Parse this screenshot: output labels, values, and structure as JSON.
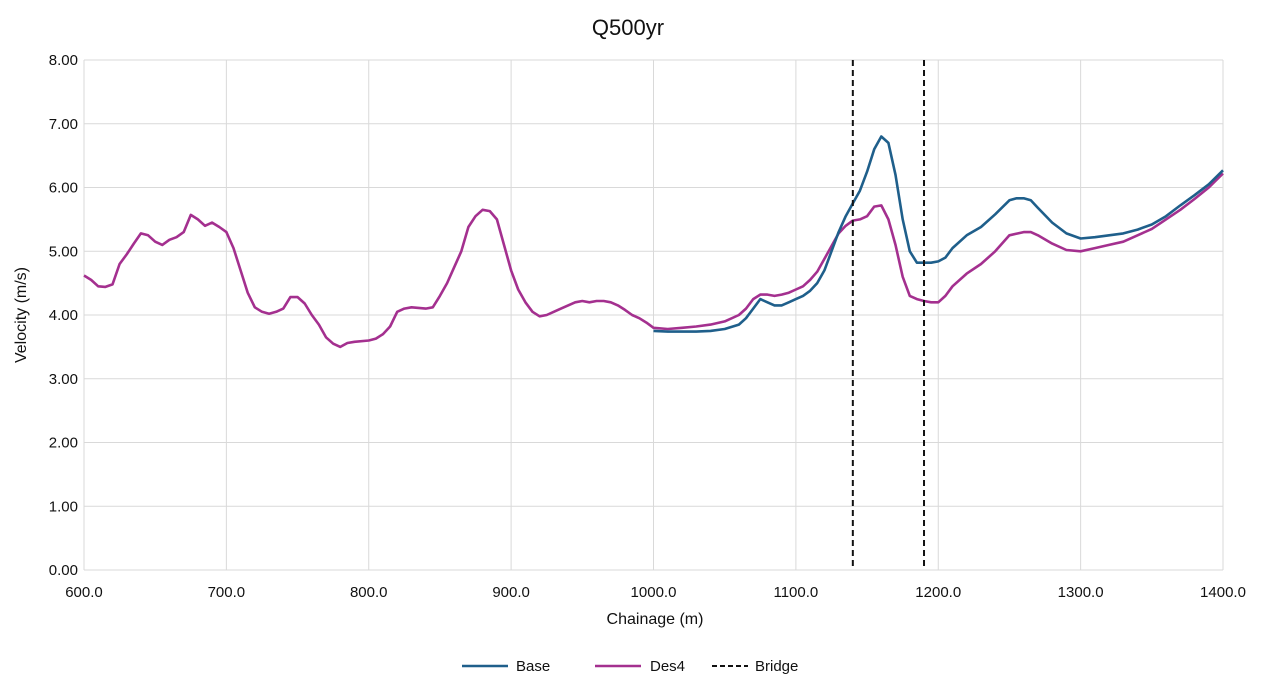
{
  "chart_data": {
    "type": "line",
    "title": "Q500yr",
    "xlabel": "Chainage (m)",
    "ylabel": "Velocity (m/s)",
    "xlim": [
      600,
      1400
    ],
    "ylim": [
      0,
      8
    ],
    "x_ticks": [
      "600.0",
      "700.0",
      "800.0",
      "900.0",
      "1000.0",
      "1100.0",
      "1200.0",
      "1300.0",
      "1400.0"
    ],
    "y_ticks": [
      "0.00",
      "1.00",
      "2.00",
      "3.00",
      "4.00",
      "5.00",
      "6.00",
      "7.00",
      "8.00"
    ],
    "grid": true,
    "legend_position": "bottom",
    "series": [
      {
        "name": "Base",
        "color": "#1f5f8b",
        "points": [
          [
            1000,
            3.75
          ],
          [
            1010,
            3.74
          ],
          [
            1020,
            3.74
          ],
          [
            1030,
            3.74
          ],
          [
            1040,
            3.75
          ],
          [
            1050,
            3.78
          ],
          [
            1060,
            3.85
          ],
          [
            1065,
            3.95
          ],
          [
            1070,
            4.1
          ],
          [
            1075,
            4.25
          ],
          [
            1080,
            4.2
          ],
          [
            1085,
            4.15
          ],
          [
            1090,
            4.15
          ],
          [
            1095,
            4.2
          ],
          [
            1100,
            4.25
          ],
          [
            1105,
            4.3
          ],
          [
            1110,
            4.38
          ],
          [
            1115,
            4.5
          ],
          [
            1120,
            4.7
          ],
          [
            1125,
            5.0
          ],
          [
            1130,
            5.3
          ],
          [
            1135,
            5.55
          ],
          [
            1140,
            5.75
          ],
          [
            1145,
            5.95
          ],
          [
            1150,
            6.25
          ],
          [
            1155,
            6.6
          ],
          [
            1160,
            6.8
          ],
          [
            1165,
            6.7
          ],
          [
            1170,
            6.2
          ],
          [
            1175,
            5.5
          ],
          [
            1180,
            5.0
          ],
          [
            1185,
            4.82
          ],
          [
            1190,
            4.82
          ],
          [
            1195,
            4.82
          ],
          [
            1200,
            4.84
          ],
          [
            1205,
            4.9
          ],
          [
            1210,
            5.05
          ],
          [
            1220,
            5.25
          ],
          [
            1230,
            5.38
          ],
          [
            1240,
            5.58
          ],
          [
            1250,
            5.8
          ],
          [
            1255,
            5.83
          ],
          [
            1260,
            5.83
          ],
          [
            1265,
            5.8
          ],
          [
            1270,
            5.68
          ],
          [
            1280,
            5.45
          ],
          [
            1290,
            5.28
          ],
          [
            1300,
            5.2
          ],
          [
            1310,
            5.22
          ],
          [
            1320,
            5.25
          ],
          [
            1330,
            5.28
          ],
          [
            1340,
            5.34
          ],
          [
            1350,
            5.42
          ],
          [
            1360,
            5.55
          ],
          [
            1370,
            5.72
          ],
          [
            1380,
            5.88
          ],
          [
            1390,
            6.05
          ],
          [
            1400,
            6.27
          ]
        ]
      },
      {
        "name": "Des4",
        "color": "#a4308f",
        "points": [
          [
            600,
            4.62
          ],
          [
            605,
            4.55
          ],
          [
            610,
            4.45
          ],
          [
            615,
            4.44
          ],
          [
            620,
            4.48
          ],
          [
            625,
            4.8
          ],
          [
            630,
            4.95
          ],
          [
            635,
            5.12
          ],
          [
            640,
            5.28
          ],
          [
            645,
            5.25
          ],
          [
            650,
            5.15
          ],
          [
            655,
            5.1
          ],
          [
            660,
            5.18
          ],
          [
            665,
            5.22
          ],
          [
            670,
            5.3
          ],
          [
            675,
            5.57
          ],
          [
            680,
            5.5
          ],
          [
            685,
            5.4
          ],
          [
            690,
            5.45
          ],
          [
            695,
            5.38
          ],
          [
            700,
            5.3
          ],
          [
            705,
            5.05
          ],
          [
            710,
            4.7
          ],
          [
            715,
            4.35
          ],
          [
            720,
            4.12
          ],
          [
            725,
            4.05
          ],
          [
            730,
            4.02
          ],
          [
            735,
            4.05
          ],
          [
            740,
            4.1
          ],
          [
            745,
            4.28
          ],
          [
            750,
            4.28
          ],
          [
            755,
            4.18
          ],
          [
            760,
            4.0
          ],
          [
            765,
            3.85
          ],
          [
            770,
            3.65
          ],
          [
            775,
            3.55
          ],
          [
            780,
            3.5
          ],
          [
            785,
            3.56
          ],
          [
            790,
            3.58
          ],
          [
            800,
            3.6
          ],
          [
            805,
            3.63
          ],
          [
            810,
            3.7
          ],
          [
            815,
            3.82
          ],
          [
            820,
            4.05
          ],
          [
            825,
            4.1
          ],
          [
            830,
            4.12
          ],
          [
            840,
            4.1
          ],
          [
            845,
            4.12
          ],
          [
            850,
            4.3
          ],
          [
            855,
            4.5
          ],
          [
            860,
            4.75
          ],
          [
            865,
            5.0
          ],
          [
            870,
            5.38
          ],
          [
            875,
            5.55
          ],
          [
            880,
            5.65
          ],
          [
            885,
            5.63
          ],
          [
            890,
            5.5
          ],
          [
            895,
            5.1
          ],
          [
            900,
            4.7
          ],
          [
            905,
            4.4
          ],
          [
            910,
            4.2
          ],
          [
            915,
            4.05
          ],
          [
            920,
            3.98
          ],
          [
            925,
            4.0
          ],
          [
            930,
            4.05
          ],
          [
            935,
            4.1
          ],
          [
            940,
            4.15
          ],
          [
            945,
            4.2
          ],
          [
            950,
            4.22
          ],
          [
            955,
            4.2
          ],
          [
            960,
            4.22
          ],
          [
            965,
            4.22
          ],
          [
            970,
            4.2
          ],
          [
            975,
            4.15
          ],
          [
            980,
            4.08
          ],
          [
            985,
            4.0
          ],
          [
            990,
            3.95
          ],
          [
            995,
            3.88
          ],
          [
            1000,
            3.8
          ],
          [
            1010,
            3.78
          ],
          [
            1020,
            3.8
          ],
          [
            1030,
            3.82
          ],
          [
            1040,
            3.85
          ],
          [
            1050,
            3.9
          ],
          [
            1060,
            4.0
          ],
          [
            1065,
            4.1
          ],
          [
            1070,
            4.25
          ],
          [
            1075,
            4.32
          ],
          [
            1080,
            4.32
          ],
          [
            1085,
            4.3
          ],
          [
            1090,
            4.32
          ],
          [
            1095,
            4.35
          ],
          [
            1100,
            4.4
          ],
          [
            1105,
            4.45
          ],
          [
            1110,
            4.55
          ],
          [
            1115,
            4.68
          ],
          [
            1120,
            4.88
          ],
          [
            1125,
            5.08
          ],
          [
            1130,
            5.28
          ],
          [
            1135,
            5.4
          ],
          [
            1140,
            5.48
          ],
          [
            1145,
            5.5
          ],
          [
            1150,
            5.55
          ],
          [
            1155,
            5.7
          ],
          [
            1160,
            5.72
          ],
          [
            1165,
            5.5
          ],
          [
            1170,
            5.1
          ],
          [
            1175,
            4.6
          ],
          [
            1180,
            4.3
          ],
          [
            1185,
            4.25
          ],
          [
            1190,
            4.22
          ],
          [
            1195,
            4.2
          ],
          [
            1200,
            4.2
          ],
          [
            1205,
            4.3
          ],
          [
            1210,
            4.45
          ],
          [
            1220,
            4.65
          ],
          [
            1230,
            4.8
          ],
          [
            1240,
            5.0
          ],
          [
            1250,
            5.25
          ],
          [
            1260,
            5.3
          ],
          [
            1265,
            5.3
          ],
          [
            1270,
            5.25
          ],
          [
            1280,
            5.12
          ],
          [
            1290,
            5.02
          ],
          [
            1300,
            5.0
          ],
          [
            1310,
            5.05
          ],
          [
            1320,
            5.1
          ],
          [
            1330,
            5.15
          ],
          [
            1340,
            5.25
          ],
          [
            1350,
            5.35
          ],
          [
            1360,
            5.5
          ],
          [
            1370,
            5.65
          ],
          [
            1380,
            5.82
          ],
          [
            1390,
            6.0
          ],
          [
            1400,
            6.22
          ]
        ]
      },
      {
        "name": "Bridge",
        "color": "#111111",
        "dashed": true,
        "vertical_lines_x": [
          1140,
          1190
        ]
      }
    ]
  }
}
